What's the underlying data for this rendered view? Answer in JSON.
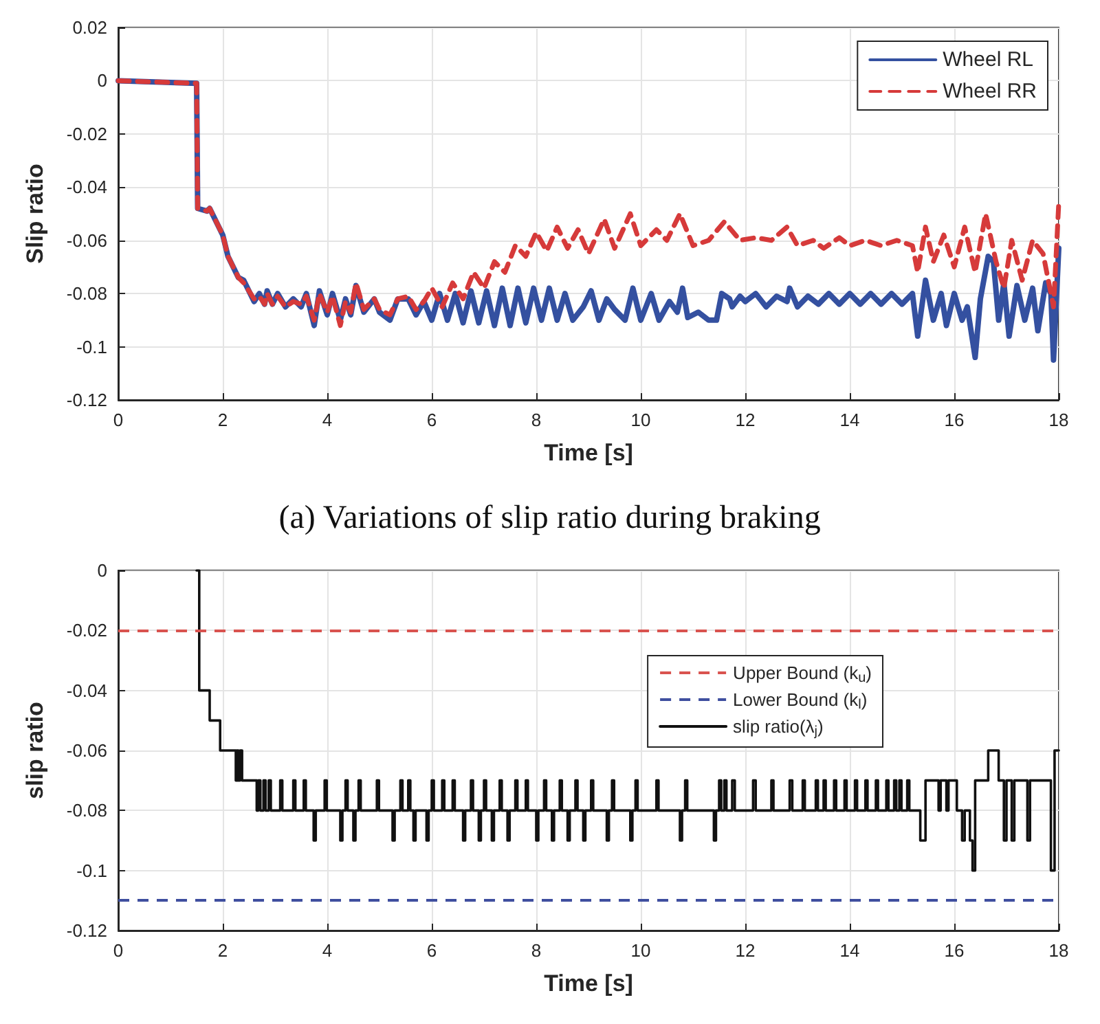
{
  "chart_data": [
    {
      "type": "line",
      "xlabel": "Time [s]",
      "ylabel": "Slip ratio",
      "annotations": [
        "(a) Variations of slip ratio during braking"
      ],
      "xlim": [
        0,
        18
      ],
      "xticks": [
        0,
        2,
        4,
        6,
        8,
        10,
        12,
        14,
        16,
        18
      ],
      "ylim": [
        -0.12,
        0.02
      ],
      "yticks": [
        -0.12,
        -0.1,
        -0.08,
        -0.06,
        -0.04,
        -0.02,
        0,
        0.02
      ],
      "grid": true,
      "legend": "top right",
      "series": [
        {
          "name": "Wheel RL",
          "color": "#3450a0",
          "line_style": "solid",
          "x": [
            0,
            1.5,
            1.52,
            1.7,
            1.75,
            1.9,
            2.0,
            2.1,
            2.2,
            2.3,
            2.4,
            2.5,
            2.6,
            2.7,
            2.8,
            2.85,
            2.95,
            3.05,
            3.2,
            3.35,
            3.5,
            3.6,
            3.75,
            3.85,
            4.0,
            4.1,
            4.25,
            4.35,
            4.45,
            4.55,
            4.7,
            4.9,
            5.0,
            5.2,
            5.35,
            5.55,
            5.7,
            5.85,
            6.0,
            6.15,
            6.3,
            6.45,
            6.6,
            6.75,
            6.9,
            7.05,
            7.2,
            7.35,
            7.5,
            7.65,
            7.8,
            7.95,
            8.1,
            8.25,
            8.4,
            8.55,
            8.7,
            8.9,
            9.05,
            9.2,
            9.35,
            9.5,
            9.7,
            9.85,
            10.0,
            10.2,
            10.35,
            10.55,
            10.7,
            10.8,
            10.9,
            11.1,
            11.3,
            11.45,
            11.55,
            11.7,
            11.75,
            11.9,
            12.0,
            12.2,
            12.4,
            12.6,
            12.8,
            12.85,
            13.0,
            13.2,
            13.4,
            13.6,
            13.8,
            14.0,
            14.2,
            14.4,
            14.6,
            14.8,
            15.0,
            15.2,
            15.3,
            15.45,
            15.6,
            15.75,
            15.85,
            16.0,
            16.15,
            16.25,
            16.4,
            16.5,
            16.65,
            16.75,
            16.85,
            16.95,
            17.05,
            17.2,
            17.35,
            17.5,
            17.6,
            17.75,
            17.85,
            17.9,
            18.0
          ],
          "values": [
            0,
            -0.001,
            -0.048,
            -0.049,
            -0.048,
            -0.054,
            -0.058,
            -0.066,
            -0.07,
            -0.074,
            -0.075,
            -0.079,
            -0.083,
            -0.08,
            -0.084,
            -0.079,
            -0.084,
            -0.08,
            -0.085,
            -0.082,
            -0.085,
            -0.08,
            -0.092,
            -0.079,
            -0.088,
            -0.08,
            -0.09,
            -0.082,
            -0.088,
            -0.077,
            -0.087,
            -0.082,
            -0.087,
            -0.09,
            -0.082,
            -0.082,
            -0.088,
            -0.083,
            -0.09,
            -0.08,
            -0.09,
            -0.08,
            -0.091,
            -0.079,
            -0.091,
            -0.079,
            -0.092,
            -0.078,
            -0.092,
            -0.078,
            -0.091,
            -0.078,
            -0.09,
            -0.078,
            -0.09,
            -0.08,
            -0.09,
            -0.085,
            -0.079,
            -0.09,
            -0.082,
            -0.086,
            -0.09,
            -0.078,
            -0.09,
            -0.08,
            -0.09,
            -0.083,
            -0.087,
            -0.078,
            -0.089,
            -0.087,
            -0.09,
            -0.09,
            -0.08,
            -0.082,
            -0.085,
            -0.081,
            -0.083,
            -0.08,
            -0.085,
            -0.081,
            -0.083,
            -0.078,
            -0.085,
            -0.081,
            -0.084,
            -0.08,
            -0.084,
            -0.08,
            -0.084,
            -0.08,
            -0.084,
            -0.08,
            -0.084,
            -0.08,
            -0.096,
            -0.075,
            -0.09,
            -0.08,
            -0.092,
            -0.08,
            -0.09,
            -0.085,
            -0.104,
            -0.082,
            -0.066,
            -0.068,
            -0.09,
            -0.076,
            -0.096,
            -0.077,
            -0.09,
            -0.078,
            -0.094,
            -0.076,
            -0.08,
            -0.105,
            -0.063
          ]
        },
        {
          "name": "Wheel RR",
          "color": "#d63a3a",
          "line_style": "dashed",
          "x": [
            0,
            1.5,
            1.52,
            1.7,
            1.75,
            1.9,
            2.0,
            2.1,
            2.2,
            2.3,
            2.4,
            2.5,
            2.6,
            2.7,
            2.8,
            2.85,
            2.95,
            3.05,
            3.2,
            3.35,
            3.5,
            3.6,
            3.75,
            3.85,
            4.0,
            4.1,
            4.25,
            4.35,
            4.45,
            4.55,
            4.7,
            4.9,
            5.0,
            5.2,
            5.35,
            5.55,
            5.7,
            5.85,
            6.0,
            6.2,
            6.4,
            6.6,
            6.8,
            7.0,
            7.2,
            7.4,
            7.6,
            7.8,
            8.0,
            8.2,
            8.4,
            8.6,
            8.8,
            9.0,
            9.3,
            9.5,
            9.8,
            10.0,
            10.3,
            10.5,
            10.75,
            11.0,
            11.3,
            11.6,
            11.9,
            12.2,
            12.5,
            12.8,
            13.0,
            13.3,
            13.5,
            13.8,
            14.0,
            14.3,
            14.6,
            14.9,
            15.2,
            15.3,
            15.45,
            15.6,
            15.8,
            16.0,
            16.2,
            16.4,
            16.6,
            16.8,
            16.95,
            17.1,
            17.3,
            17.5,
            17.7,
            17.9,
            18.0
          ],
          "values": [
            0,
            -0.001,
            -0.048,
            -0.049,
            -0.048,
            -0.054,
            -0.058,
            -0.066,
            -0.07,
            -0.074,
            -0.076,
            -0.079,
            -0.082,
            -0.081,
            -0.084,
            -0.08,
            -0.084,
            -0.081,
            -0.085,
            -0.083,
            -0.084,
            -0.081,
            -0.09,
            -0.08,
            -0.087,
            -0.081,
            -0.092,
            -0.083,
            -0.087,
            -0.076,
            -0.086,
            -0.082,
            -0.086,
            -0.088,
            -0.082,
            -0.081,
            -0.086,
            -0.083,
            -0.078,
            -0.085,
            -0.076,
            -0.082,
            -0.072,
            -0.078,
            -0.068,
            -0.072,
            -0.062,
            -0.066,
            -0.057,
            -0.064,
            -0.055,
            -0.063,
            -0.056,
            -0.065,
            -0.052,
            -0.063,
            -0.05,
            -0.062,
            -0.056,
            -0.06,
            -0.05,
            -0.062,
            -0.06,
            -0.053,
            -0.06,
            -0.059,
            -0.06,
            -0.055,
            -0.062,
            -0.06,
            -0.063,
            -0.059,
            -0.062,
            -0.06,
            -0.062,
            -0.06,
            -0.062,
            -0.072,
            -0.055,
            -0.068,
            -0.058,
            -0.07,
            -0.055,
            -0.072,
            -0.05,
            -0.068,
            -0.078,
            -0.06,
            -0.075,
            -0.06,
            -0.065,
            -0.085,
            -0.046
          ]
        }
      ]
    },
    {
      "type": "step",
      "xlabel": "Time [s]",
      "ylabel": "slip ratio",
      "xlim": [
        0,
        18
      ],
      "xticks": [
        0,
        2,
        4,
        6,
        8,
        10,
        12,
        14,
        16,
        18
      ],
      "ylim": [
        -0.12,
        0
      ],
      "yticks": [
        -0.12,
        -0.1,
        -0.08,
        -0.06,
        -0.04,
        -0.02,
        0
      ],
      "grid": true,
      "legend": "right",
      "ref_lines": [
        {
          "axis": "y",
          "value": -0.02,
          "label": "Upper Bound (k$_{u}$)",
          "color": "#d9534f",
          "line_style": "dashed"
        },
        {
          "axis": "y",
          "value": -0.11,
          "label": "Lower Bound (k$_{l}$)",
          "color": "#3f4f9f",
          "line_style": "dashed"
        }
      ],
      "series": [
        {
          "name": "slip ratio(λ$_{j}$)",
          "color": "#111111",
          "line_style": "solid",
          "x": [
            1.5,
            1.55,
            1.75,
            1.95,
            2.25,
            2.27,
            2.3,
            2.33,
            2.37,
            2.65,
            2.68,
            2.72,
            2.78,
            2.82,
            2.88,
            2.92,
            3.1,
            3.14,
            3.35,
            3.39,
            3.55,
            3.59,
            3.74,
            3.78,
            3.95,
            3.99,
            4.25,
            4.29,
            4.35,
            4.39,
            4.5,
            4.54,
            4.6,
            4.64,
            4.95,
            4.99,
            5.25,
            5.29,
            5.4,
            5.44,
            5.55,
            5.59,
            5.65,
            5.69,
            5.9,
            5.94,
            6.0,
            6.04,
            6.2,
            6.24,
            6.4,
            6.44,
            6.6,
            6.64,
            6.75,
            6.79,
            6.9,
            6.94,
            7.0,
            7.04,
            7.15,
            7.19,
            7.3,
            7.34,
            7.45,
            7.49,
            7.6,
            7.64,
            7.8,
            7.84,
            8.0,
            8.04,
            8.15,
            8.19,
            8.3,
            8.34,
            8.45,
            8.49,
            8.6,
            8.64,
            8.75,
            8.79,
            8.9,
            8.94,
            9.05,
            9.09,
            9.35,
            9.39,
            9.45,
            9.49,
            9.8,
            9.84,
            9.9,
            9.94,
            10.3,
            10.34,
            10.75,
            10.79,
            10.85,
            10.89,
            11.4,
            11.44,
            11.5,
            11.54,
            11.6,
            11.64,
            11.75,
            11.8,
            12.15,
            12.2,
            12.5,
            12.54,
            12.85,
            12.9,
            13.1,
            13.14,
            13.35,
            13.39,
            13.5,
            13.54,
            13.7,
            13.74,
            13.9,
            13.94,
            14.1,
            14.14,
            14.3,
            14.34,
            14.5,
            14.54,
            14.7,
            14.74,
            14.85,
            14.89,
            14.95,
            14.99,
            15.1,
            15.14,
            15.35,
            15.45,
            15.7,
            15.74,
            15.85,
            15.89,
            16.05,
            16.15,
            16.2,
            16.3,
            16.35,
            16.4,
            16.6,
            16.65,
            16.85,
            16.95,
            17.0,
            17.1,
            17.15,
            17.4,
            17.45,
            17.85,
            17.92,
            18.0
          ],
          "values": [
            0,
            -0.04,
            -0.05,
            -0.06,
            -0.07,
            -0.06,
            -0.07,
            -0.06,
            -0.07,
            -0.08,
            -0.07,
            -0.08,
            -0.07,
            -0.08,
            -0.07,
            -0.08,
            -0.07,
            -0.08,
            -0.07,
            -0.08,
            -0.07,
            -0.08,
            -0.09,
            -0.08,
            -0.07,
            -0.08,
            -0.09,
            -0.08,
            -0.07,
            -0.08,
            -0.09,
            -0.08,
            -0.07,
            -0.08,
            -0.07,
            -0.08,
            -0.09,
            -0.08,
            -0.07,
            -0.08,
            -0.07,
            -0.08,
            -0.09,
            -0.08,
            -0.09,
            -0.08,
            -0.07,
            -0.08,
            -0.07,
            -0.08,
            -0.07,
            -0.08,
            -0.09,
            -0.08,
            -0.07,
            -0.08,
            -0.09,
            -0.08,
            -0.07,
            -0.08,
            -0.09,
            -0.08,
            -0.07,
            -0.08,
            -0.09,
            -0.08,
            -0.07,
            -0.08,
            -0.07,
            -0.08,
            -0.09,
            -0.08,
            -0.07,
            -0.08,
            -0.09,
            -0.08,
            -0.07,
            -0.08,
            -0.09,
            -0.08,
            -0.07,
            -0.08,
            -0.09,
            -0.08,
            -0.07,
            -0.08,
            -0.09,
            -0.08,
            -0.07,
            -0.08,
            -0.09,
            -0.08,
            -0.07,
            -0.08,
            -0.07,
            -0.08,
            -0.09,
            -0.08,
            -0.07,
            -0.08,
            -0.09,
            -0.08,
            -0.07,
            -0.08,
            -0.07,
            -0.08,
            -0.07,
            -0.08,
            -0.07,
            -0.08,
            -0.07,
            -0.08,
            -0.07,
            -0.08,
            -0.07,
            -0.08,
            -0.07,
            -0.08,
            -0.07,
            -0.08,
            -0.07,
            -0.08,
            -0.07,
            -0.08,
            -0.07,
            -0.08,
            -0.07,
            -0.08,
            -0.07,
            -0.08,
            -0.07,
            -0.08,
            -0.07,
            -0.08,
            -0.07,
            -0.08,
            -0.07,
            -0.08,
            -0.09,
            -0.07,
            -0.08,
            -0.07,
            -0.08,
            -0.07,
            -0.08,
            -0.09,
            -0.08,
            -0.09,
            -0.1,
            -0.07,
            -0.07,
            -0.06,
            -0.07,
            -0.09,
            -0.07,
            -0.09,
            -0.07,
            -0.09,
            -0.07,
            -0.1,
            -0.06,
            -0.06
          ]
        }
      ]
    }
  ]
}
